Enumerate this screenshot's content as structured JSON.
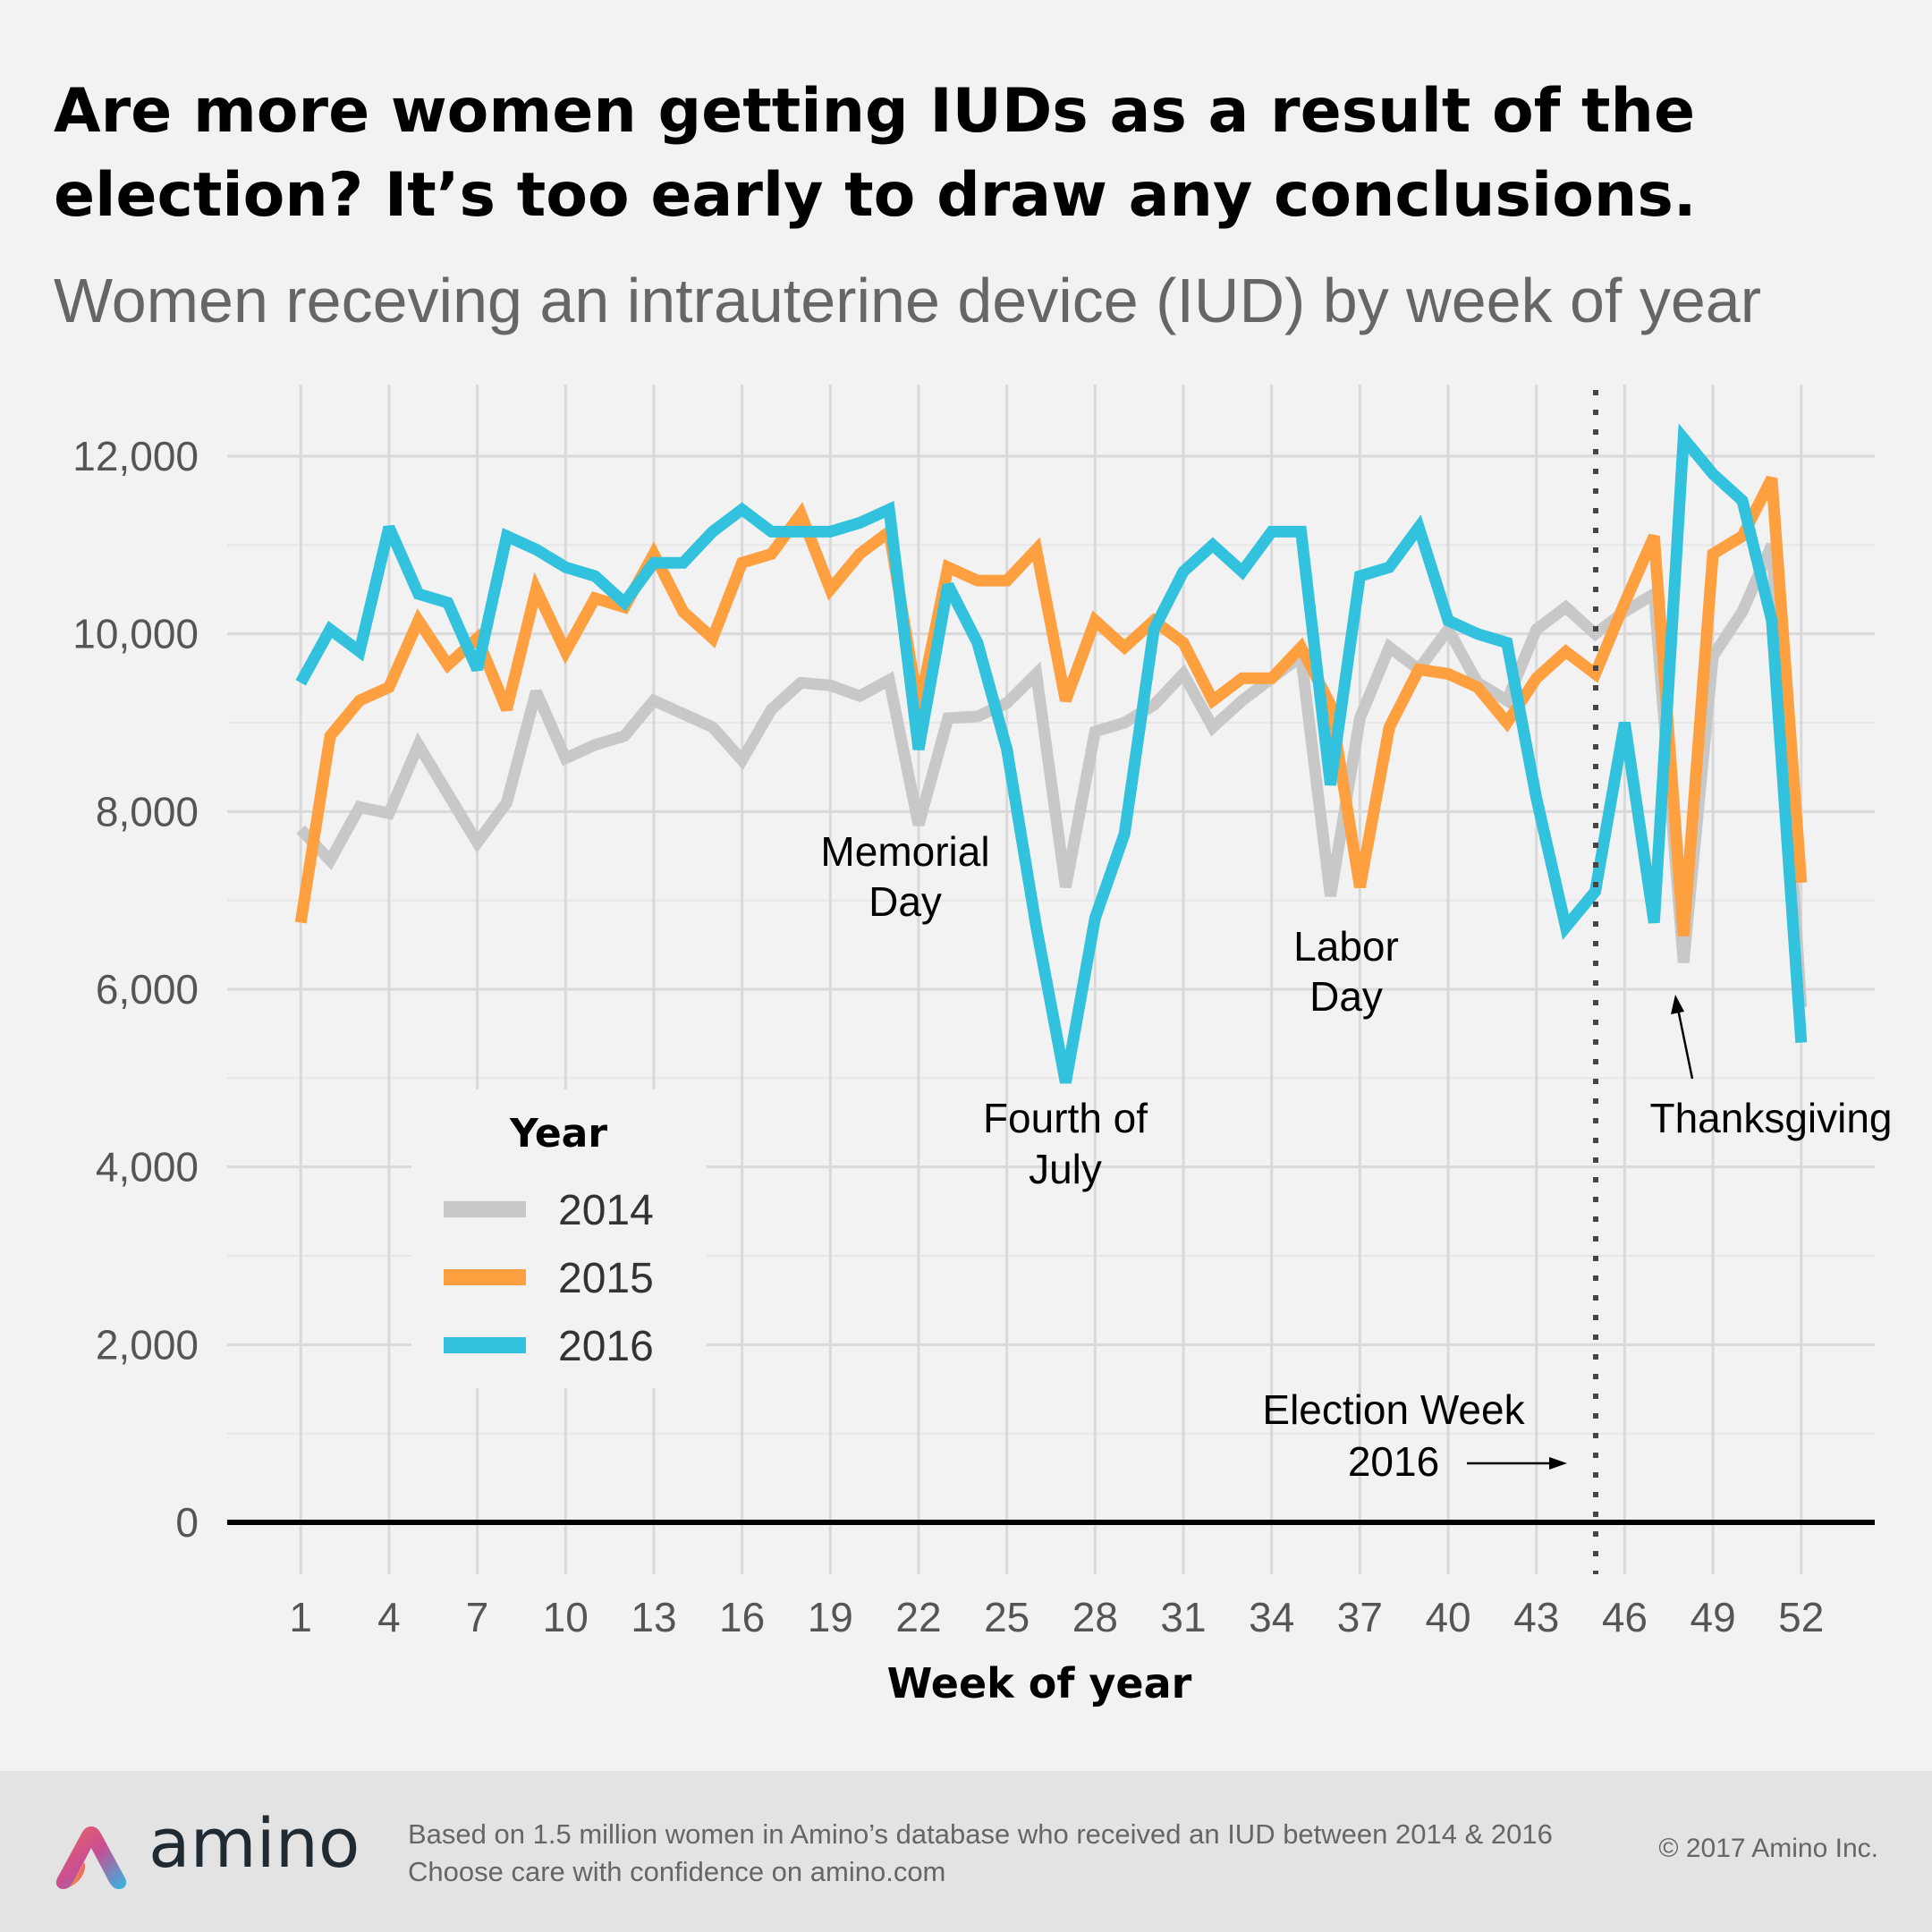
{
  "header": {
    "title": "Are more women getting IUDs as a result of the election? It’s too early to draw any conclusions.",
    "subtitle": "Women receving an intrauterine device (IUD) by week of year"
  },
  "chart_data": {
    "type": "line",
    "xlabel": "Week of year",
    "ylabel": "",
    "x": [
      1,
      2,
      3,
      4,
      5,
      6,
      7,
      8,
      9,
      10,
      11,
      12,
      13,
      14,
      15,
      16,
      17,
      18,
      19,
      20,
      21,
      22,
      23,
      24,
      25,
      26,
      27,
      28,
      29,
      30,
      31,
      32,
      33,
      34,
      35,
      36,
      37,
      38,
      39,
      40,
      41,
      42,
      43,
      44,
      45,
      46,
      47,
      48,
      49,
      50,
      51,
      52
    ],
    "xticks": [
      1,
      4,
      7,
      10,
      13,
      16,
      19,
      22,
      25,
      28,
      31,
      34,
      37,
      40,
      43,
      46,
      49,
      52
    ],
    "xlim": [
      -1.5,
      54.5
    ],
    "ylim": [
      0,
      12700
    ],
    "yticks": [
      0,
      2000,
      4000,
      6000,
      8000,
      10000,
      12000
    ],
    "ytick_labels": [
      "0",
      "2,000",
      "4,000",
      "6,000",
      "8,000",
      "10,000",
      "12,000"
    ],
    "grid": true,
    "legend": {
      "title": "Year",
      "placement": "bottom-left"
    },
    "series": [
      {
        "name": "2014",
        "color": "#c8c8c8",
        "values": [
          7800,
          7450,
          8050,
          7980,
          8750,
          8200,
          7650,
          8100,
          9350,
          8600,
          8750,
          8850,
          9250,
          9100,
          8950,
          8580,
          9150,
          9450,
          9420,
          9300,
          9480,
          7850,
          9050,
          9070,
          9220,
          9550,
          7150,
          8900,
          9000,
          9200,
          9550,
          8950,
          9250,
          9500,
          9750,
          7050,
          9050,
          9850,
          9600,
          10050,
          9450,
          9250,
          10050,
          10300,
          10000,
          10250,
          10450,
          6300,
          9750,
          10250,
          11000,
          5800
        ]
      },
      {
        "name": "2015",
        "color": "#ffa040",
        "values": [
          6750,
          8850,
          9250,
          9400,
          10150,
          9650,
          9950,
          9150,
          10500,
          9800,
          10400,
          10300,
          10900,
          10250,
          9950,
          10800,
          10900,
          11350,
          10500,
          10900,
          11150,
          9150,
          10750,
          10600,
          10600,
          10950,
          9250,
          10150,
          9850,
          10150,
          9900,
          9250,
          9500,
          9500,
          9850,
          9200,
          7150,
          8950,
          9600,
          9550,
          9400,
          9000,
          9500,
          9800,
          9550,
          10350,
          11100,
          6600,
          10900,
          11100,
          11750,
          7200
        ]
      },
      {
        "name": "2016",
        "color": "#33c2dd",
        "values": [
          9450,
          10050,
          9800,
          11200,
          10450,
          10350,
          9600,
          11100,
          10950,
          10750,
          10650,
          10350,
          10800,
          10800,
          11150,
          11400,
          11150,
          11150,
          11150,
          11250,
          11400,
          8700,
          10550,
          9900,
          8700,
          6700,
          4950,
          6800,
          7750,
          10050,
          10700,
          11000,
          10700,
          11150,
          11150,
          8300,
          10650,
          10750,
          11200,
          10150,
          10000,
          9900,
          8150,
          6700,
          7100,
          9000,
          6750,
          12200,
          11800,
          11500,
          10150,
          5400
        ]
      }
    ],
    "annotations": [
      {
        "label": "memorial-day",
        "lines": [
          "Memorial",
          "Day"
        ]
      },
      {
        "label": "fourth-of-july",
        "lines": [
          "Fourth of",
          "July"
        ]
      },
      {
        "label": "labor-day",
        "lines": [
          "Labor",
          "Day"
        ]
      },
      {
        "label": "thanksgiving",
        "lines": [
          "Thanksgiving"
        ]
      },
      {
        "label": "election-week",
        "lines": [
          "Election Week",
          "2016"
        ]
      }
    ]
  },
  "footer": {
    "brand": "amino",
    "source_line1": "Based on 1.5 million women in Amino’s database who received an IUD between 2014 & 2016",
    "source_line2": "Choose care with confidence on amino.com",
    "copyright": "© 2017 Amino Inc."
  }
}
